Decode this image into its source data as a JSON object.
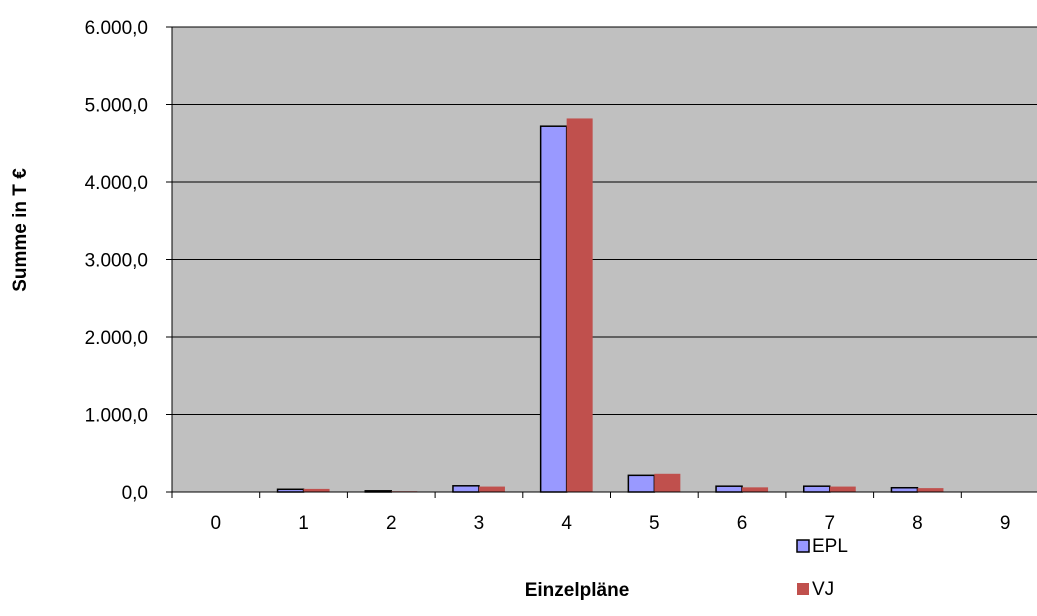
{
  "chart_data": {
    "type": "bar",
    "categories": [
      "0",
      "1",
      "2",
      "3",
      "4",
      "5",
      "6",
      "7",
      "8",
      "9"
    ],
    "series": [
      {
        "name": "EPL",
        "color": "#9999ff",
        "values": [
          0,
          35,
          15,
          80,
          4720,
          215,
          75,
          75,
          55,
          0
        ]
      },
      {
        "name": "VJ",
        "color": "#c0504d",
        "values": [
          0,
          40,
          10,
          70,
          4820,
          235,
          60,
          70,
          50,
          0
        ]
      }
    ],
    "title": "",
    "xlabel": "Einzelpläne",
    "ylabel": "Summe in T €",
    "ylim": [
      0,
      6000
    ],
    "yticks": [
      "0,0",
      "1.000,0",
      "2.000,0",
      "3.000,0",
      "4.000,0",
      "5.000,0",
      "6.000,0"
    ],
    "ytick_values": [
      0,
      1000,
      2000,
      3000,
      4000,
      5000,
      6000
    ],
    "plot_background": "#c0c0c0",
    "grid": true,
    "legend_position": "bottom-right"
  }
}
